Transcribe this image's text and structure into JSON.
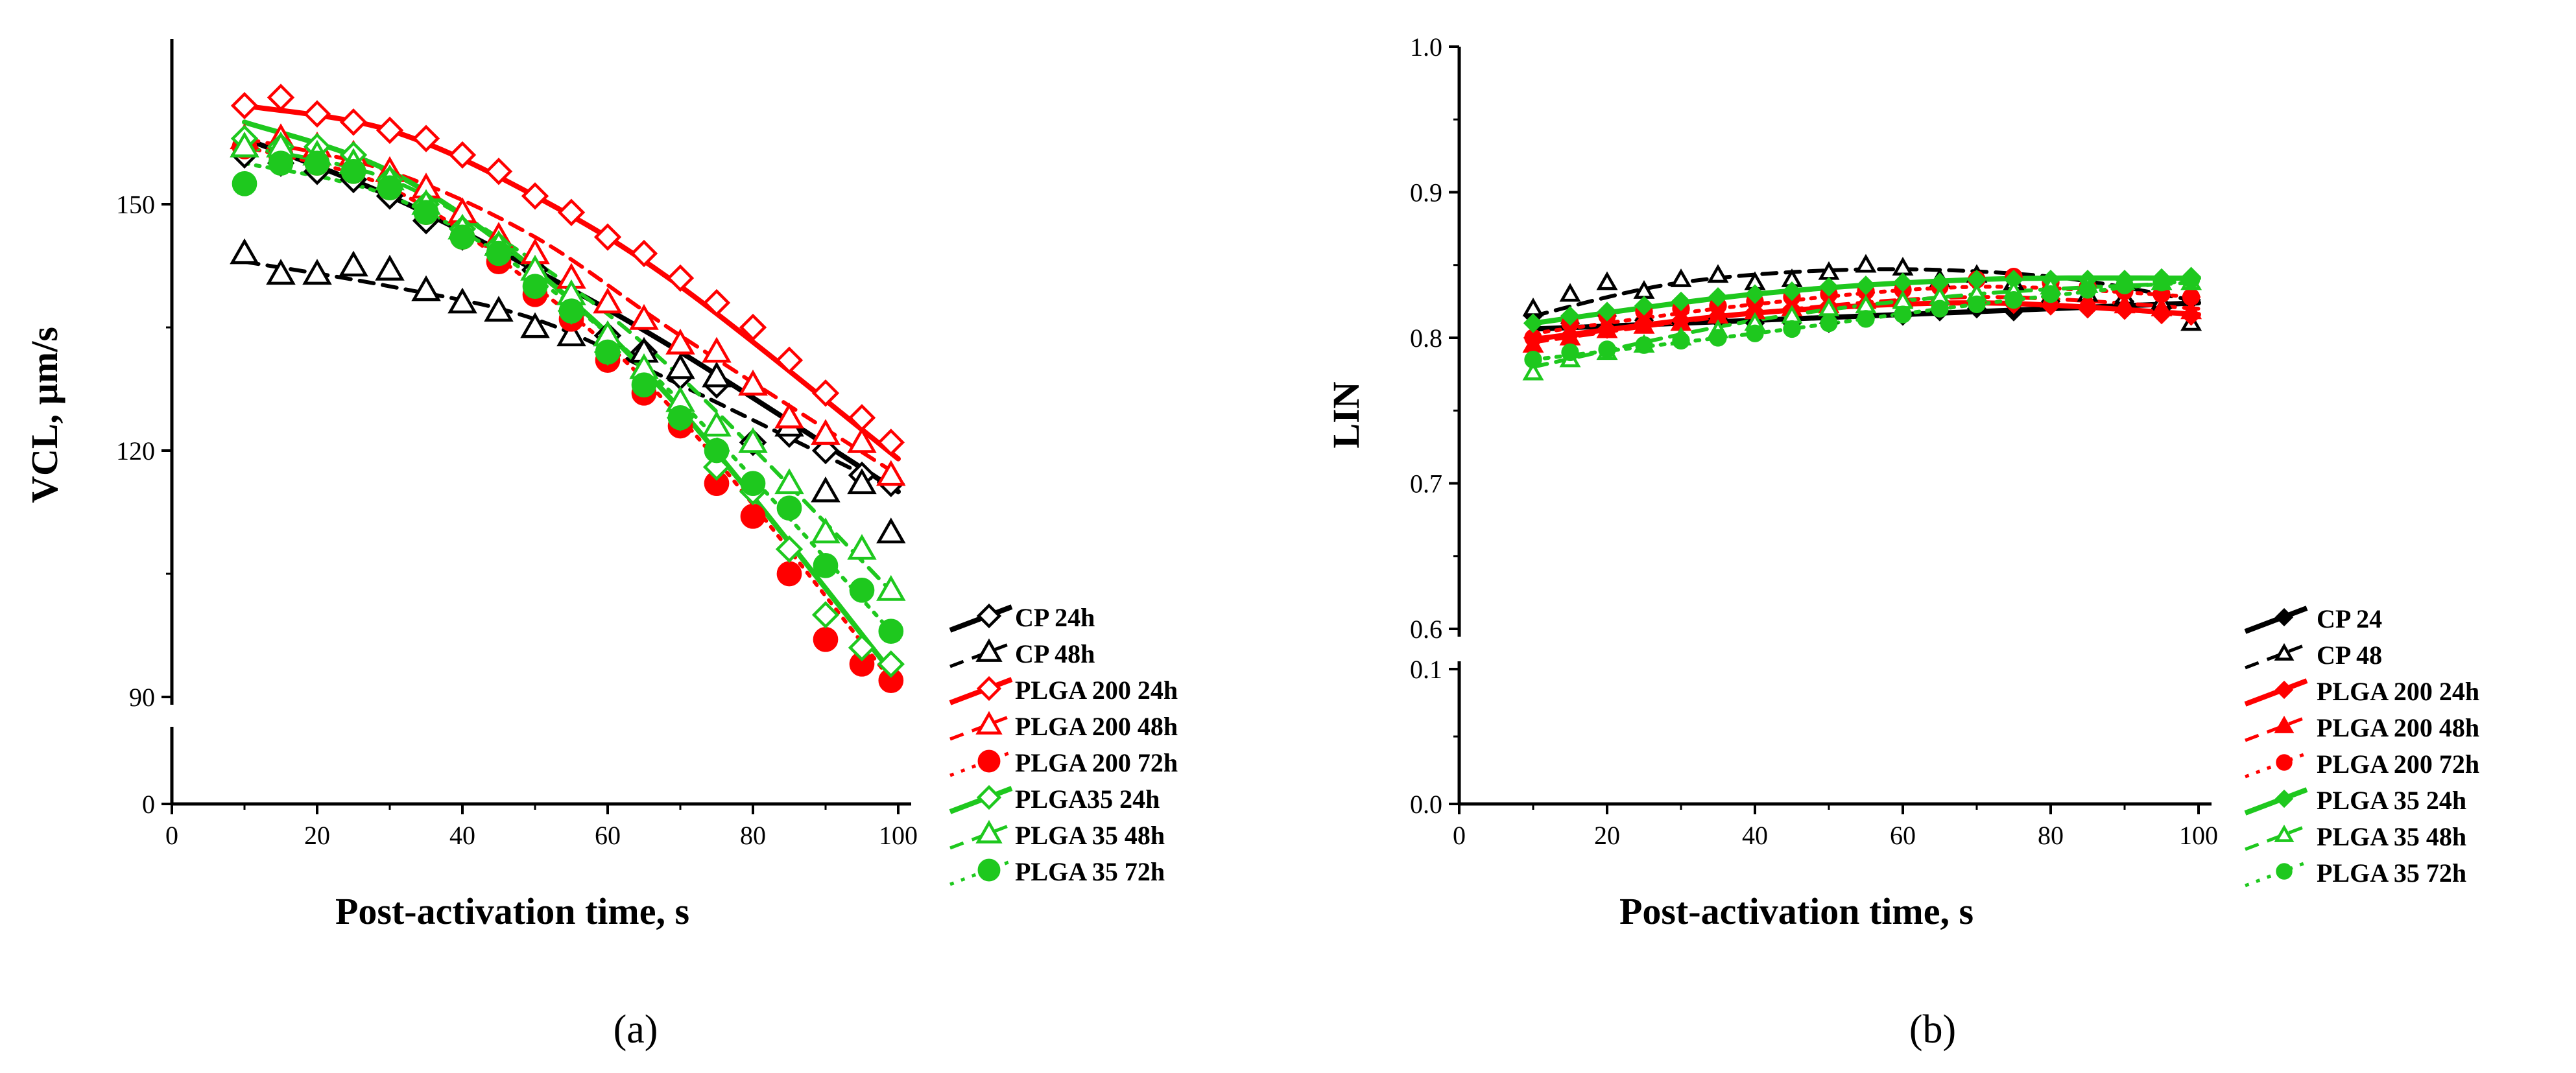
{
  "colors": {
    "black": "#000000",
    "red": "#ff0000",
    "green": "#1ec81e"
  },
  "chart_data": [
    {
      "type": "line",
      "panel_label": "(a)",
      "xlabel": "Post-activation time, s",
      "ylabel": "VCL, µm/s",
      "xlim": [
        0,
        100
      ],
      "x_ticks": [
        "0",
        "20",
        "40",
        "60",
        "80",
        "100"
      ],
      "y_ticks": [
        "0",
        "90",
        "120",
        "150"
      ],
      "y_axis_break": [
        0,
        90
      ],
      "x": [
        10,
        15,
        20,
        25,
        30,
        35,
        40,
        45,
        50,
        55,
        60,
        65,
        70,
        75,
        80,
        85,
        90,
        95,
        99
      ],
      "series": [
        {
          "name": "CP 24h",
          "color": "black",
          "marker": "diamond",
          "fill": false,
          "dash": "solid",
          "values": [
            156,
            155,
            154,
            153,
            151,
            148,
            146,
            144,
            142,
            137,
            134,
            132,
            129,
            128,
            121,
            122,
            120,
            117,
            116
          ]
        },
        {
          "name": "CP 48h",
          "color": "black",
          "marker": "triangle",
          "fill": false,
          "dash": "dashed",
          "values": [
            144,
            141.5,
            141.5,
            142.5,
            142,
            139.5,
            138,
            137,
            135,
            134,
            134,
            132,
            130,
            129,
            128,
            123,
            115,
            116,
            110
          ]
        },
        {
          "name": "PLGA 200 24h",
          "color": "red",
          "marker": "diamond",
          "fill": false,
          "dash": "solid",
          "values": [
            162,
            163,
            161,
            160,
            159,
            158,
            156,
            154,
            151,
            149,
            146,
            144,
            141,
            138,
            135,
            131,
            127,
            124,
            121
          ]
        },
        {
          "name": "PLGA 200 48h",
          "color": "red",
          "marker": "triangle",
          "fill": false,
          "dash": "dashed",
          "values": [
            158,
            158,
            157,
            156,
            154,
            152,
            149,
            146,
            144,
            141,
            138,
            136,
            133,
            132,
            128,
            124,
            122,
            121,
            117
          ]
        },
        {
          "name": "PLGA 200 72h",
          "color": "red",
          "marker": "circle",
          "fill": true,
          "dash": "dotted",
          "values": [
            157,
            156,
            155,
            154,
            152,
            149,
            146,
            143,
            139,
            136,
            131,
            127,
            123,
            116,
            112,
            105,
            97,
            94,
            92
          ]
        },
        {
          "name": "PLGA35 24h",
          "color": "green",
          "marker": "diamond",
          "fill": false,
          "dash": "solid",
          "values": [
            158,
            157,
            157,
            156,
            153,
            150,
            147,
            145,
            141,
            137,
            132,
            129,
            124,
            118,
            115,
            108,
            100,
            96,
            94
          ]
        },
        {
          "name": "PLGA 35 48h",
          "color": "green",
          "marker": "triangle",
          "fill": false,
          "dash": "dashed",
          "values": [
            157,
            157,
            156,
            155,
            153,
            150,
            147,
            145,
            142,
            139,
            134,
            130,
            126,
            123,
            121,
            116,
            110,
            108,
            103
          ]
        },
        {
          "name": "PLGA 35 72h",
          "color": "green",
          "marker": "circle",
          "fill": true,
          "dash": "dotted",
          "values": [
            152.5,
            155,
            155,
            154,
            152,
            149,
            146,
            144,
            140,
            137,
            132,
            128,
            124,
            120,
            116,
            113,
            106,
            103,
            98
          ]
        }
      ],
      "fits": [
        {
          "series": "CP 24h",
          "color": "black",
          "dash": "solid",
          "x": [
            10,
            30,
            50,
            70,
            100
          ],
          "y": [
            158,
            151,
            142,
            132,
            115
          ]
        },
        {
          "series": "CP 48h",
          "color": "black",
          "dash": "dashed",
          "x": [
            10,
            30,
            50,
            70,
            100
          ],
          "y": [
            143,
            140,
            136,
            128,
            115
          ]
        },
        {
          "series": "PLGA 200 24h",
          "color": "red",
          "dash": "solid",
          "x": [
            10,
            30,
            50,
            70,
            100
          ],
          "y": [
            162,
            159,
            151,
            140,
            119
          ]
        },
        {
          "series": "PLGA 200 48h",
          "color": "red",
          "dash": "dashed",
          "x": [
            10,
            30,
            50,
            70,
            100
          ],
          "y": [
            158,
            154,
            146,
            134,
            117
          ]
        },
        {
          "series": "PLGA 200 72h",
          "color": "red",
          "dash": "dotted",
          "x": [
            10,
            30,
            50,
            70,
            100
          ],
          "y": [
            157,
            152,
            140,
            124,
            91
          ]
        },
        {
          "series": "PLGA35 24h",
          "color": "green",
          "dash": "solid",
          "x": [
            10,
            30,
            50,
            70,
            100
          ],
          "y": [
            160,
            154,
            142,
            125,
            92
          ]
        },
        {
          "series": "PLGA 35 48h",
          "color": "green",
          "dash": "dashed",
          "x": [
            10,
            30,
            50,
            70,
            100
          ],
          "y": [
            157,
            153,
            143,
            129,
            102
          ]
        },
        {
          "series": "PLGA 35 72h",
          "color": "green",
          "dash": "dotted",
          "x": [
            10,
            30,
            50,
            70,
            100
          ],
          "y": [
            155,
            151,
            141,
            126,
            97
          ]
        }
      ]
    },
    {
      "type": "line",
      "panel_label": "(b)",
      "xlabel": "Post-activation time, s",
      "ylabel": "LIN",
      "xlim": [
        0,
        100
      ],
      "x_ticks": [
        "0",
        "20",
        "40",
        "60",
        "80",
        "100"
      ],
      "y_ticks": [
        "0.0",
        "0.1",
        "0.6",
        "0.7",
        "0.8",
        "0.9",
        "1.0"
      ],
      "y_axis_break": [
        0.1,
        0.6
      ],
      "x": [
        10,
        15,
        20,
        25,
        30,
        35,
        40,
        45,
        50,
        55,
        60,
        65,
        70,
        75,
        80,
        85,
        90,
        95,
        99
      ],
      "series": [
        {
          "name": "CP 24",
          "color": "black",
          "marker": "diamond",
          "fill": true,
          "dash": "solid",
          "values": [
            0.815,
            0.81,
            0.815,
            0.812,
            0.81,
            0.813,
            0.81,
            0.81,
            0.81,
            0.815,
            0.815,
            0.818,
            0.82,
            0.818,
            0.825,
            0.82,
            0.825,
            0.82,
            0.826
          ]
        },
        {
          "name": "CP 48",
          "color": "black",
          "marker": "triangle",
          "fill": false,
          "dash": "dashed",
          "values": [
            0.82,
            0.83,
            0.838,
            0.832,
            0.84,
            0.843,
            0.838,
            0.84,
            0.845,
            0.85,
            0.848,
            0.84,
            0.843,
            0.838,
            0.835,
            0.83,
            0.828,
            0.825,
            0.81
          ]
        },
        {
          "name": "PLGA 200 24h",
          "color": "red",
          "marker": "diamond",
          "fill": true,
          "dash": "solid",
          "values": [
            0.8,
            0.802,
            0.806,
            0.81,
            0.812,
            0.815,
            0.818,
            0.82,
            0.822,
            0.823,
            0.824,
            0.825,
            0.824,
            0.823,
            0.822,
            0.82,
            0.819,
            0.816,
            0.815
          ]
        },
        {
          "name": "PLGA 200 48h",
          "color": "red",
          "marker": "triangle",
          "fill": true,
          "dash": "dashed",
          "values": [
            0.795,
            0.8,
            0.805,
            0.808,
            0.81,
            0.815,
            0.818,
            0.82,
            0.822,
            0.825,
            0.826,
            0.828,
            0.83,
            0.828,
            0.826,
            0.825,
            0.822,
            0.82,
            0.818
          ]
        },
        {
          "name": "PLGA 200 72h",
          "color": "red",
          "marker": "circle",
          "fill": true,
          "dash": "dotted",
          "values": [
            0.8,
            0.81,
            0.815,
            0.818,
            0.82,
            0.822,
            0.825,
            0.828,
            0.83,
            0.832,
            0.833,
            0.835,
            0.84,
            0.842,
            0.838,
            0.835,
            0.832,
            0.83,
            0.828
          ]
        },
        {
          "name": "PLGA 35 24h",
          "color": "green",
          "marker": "diamond",
          "fill": true,
          "dash": "solid",
          "values": [
            0.81,
            0.815,
            0.818,
            0.822,
            0.825,
            0.828,
            0.83,
            0.832,
            0.835,
            0.836,
            0.838,
            0.838,
            0.84,
            0.84,
            0.84,
            0.84,
            0.84,
            0.841,
            0.842
          ]
        },
        {
          "name": "PLGA 35 48h",
          "color": "green",
          "marker": "triangle",
          "fill": false,
          "dash": "dashed",
          "values": [
            0.776,
            0.785,
            0.79,
            0.795,
            0.8,
            0.805,
            0.81,
            0.815,
            0.82,
            0.822,
            0.825,
            0.828,
            0.83,
            0.832,
            0.835,
            0.836,
            0.838,
            0.838,
            0.838
          ]
        },
        {
          "name": "PLGA 35 72h",
          "color": "green",
          "marker": "circle",
          "fill": true,
          "dash": "dotted",
          "values": [
            0.785,
            0.79,
            0.792,
            0.795,
            0.798,
            0.8,
            0.803,
            0.806,
            0.81,
            0.813,
            0.816,
            0.82,
            0.823,
            0.826,
            0.83,
            0.833,
            0.836,
            0.838,
            0.84
          ]
        }
      ],
      "fits": [
        {
          "series": "CP 24",
          "color": "black",
          "dash": "solid",
          "x": [
            10,
            40,
            70,
            100
          ],
          "y": [
            0.806,
            0.812,
            0.818,
            0.824
          ]
        },
        {
          "series": "CP 48",
          "color": "black",
          "dash": "dashed",
          "x": [
            10,
            30,
            55,
            80,
            100
          ],
          "y": [
            0.815,
            0.838,
            0.847,
            0.842,
            0.825
          ]
        },
        {
          "series": "PLGA 200 24h",
          "color": "red",
          "dash": "solid",
          "x": [
            10,
            40,
            70,
            100
          ],
          "y": [
            0.799,
            0.817,
            0.824,
            0.816
          ]
        },
        {
          "series": "PLGA 200 48h",
          "color": "red",
          "dash": "dashed",
          "x": [
            10,
            40,
            70,
            100
          ],
          "y": [
            0.797,
            0.817,
            0.828,
            0.82
          ]
        },
        {
          "series": "PLGA 200 72h",
          "color": "red",
          "dash": "dotted",
          "x": [
            10,
            40,
            70,
            100
          ],
          "y": [
            0.803,
            0.823,
            0.835,
            0.828
          ]
        },
        {
          "series": "PLGA 35 24h",
          "color": "green",
          "dash": "solid",
          "x": [
            10,
            40,
            70,
            100
          ],
          "y": [
            0.81,
            0.83,
            0.84,
            0.841
          ]
        },
        {
          "series": "PLGA 35 48h",
          "color": "green",
          "dash": "dashed",
          "x": [
            10,
            40,
            70,
            100
          ],
          "y": [
            0.78,
            0.812,
            0.83,
            0.838
          ]
        },
        {
          "series": "PLGA 35 72h",
          "color": "green",
          "dash": "dotted",
          "x": [
            10,
            40,
            70,
            100
          ],
          "y": [
            0.785,
            0.803,
            0.823,
            0.84
          ]
        }
      ]
    }
  ]
}
